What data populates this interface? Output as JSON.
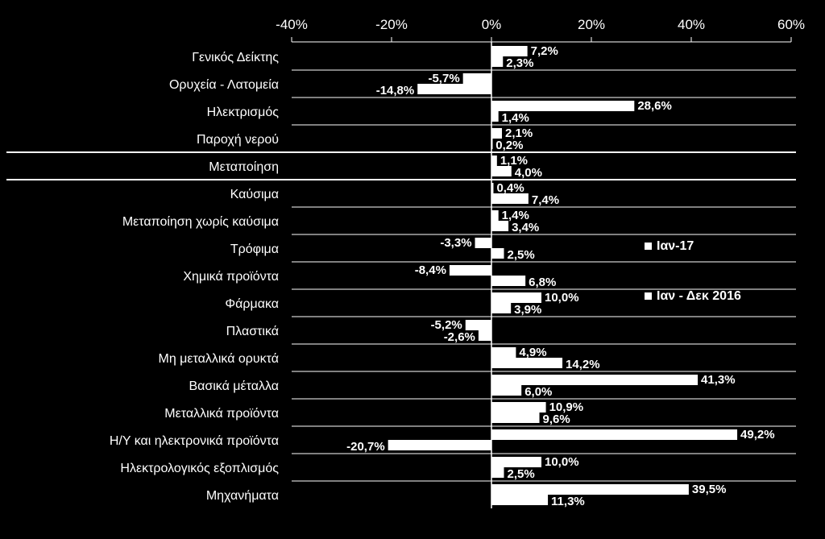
{
  "chart_data": {
    "type": "bar",
    "orientation": "horizontal",
    "xlim": [
      -40,
      60
    ],
    "x_ticks": [
      -40,
      -20,
      0,
      20,
      40,
      60
    ],
    "x_tick_labels": [
      "-40%",
      "-20%",
      "0%",
      "20%",
      "40%",
      "60%"
    ],
    "x_axis_position": "top",
    "grid": "horizontal separators between categories",
    "legend_position": "right-middle",
    "colors": {
      "background": "#000000",
      "bars": "#ffffff",
      "text": "#ffffff",
      "grid": "#ffffff"
    },
    "categories": [
      "Γενικός Δείκτης",
      "Ορυχεία - Λατομεία",
      "Ηλεκτρισμός",
      "Παροχή νερού",
      "Μεταποίηση",
      "Καύσιμα",
      "Μεταποίηση χωρίς καύσιμα",
      "Τρόφιμα",
      "Χημικά προϊόντα",
      "Φάρμακα",
      "Πλαστικά",
      "Μη μεταλλικά ορυκτά",
      "Βασικά μέταλλα",
      "Μεταλλικά προϊόντα",
      "Η/Υ και ηλεκτρονικά προϊόντα",
      "Ηλεκτρολογικός εξοπλισμός",
      "Μηχανήματα"
    ],
    "series": [
      {
        "name": "Ιαν-17",
        "values": [
          7.2,
          -5.7,
          28.6,
          2.1,
          1.1,
          0.4,
          1.4,
          -3.3,
          -8.4,
          10.0,
          -5.2,
          4.9,
          41.3,
          10.9,
          49.2,
          10.0,
          39.5
        ],
        "labels": [
          "7,2%",
          "-5,7%",
          "28,6%",
          "2,1%",
          "1,1%",
          "0,4%",
          "1,4%",
          "-3,3%",
          "-8,4%",
          "10,0%",
          "-5,2%",
          "4,9%",
          "41,3%",
          "10,9%",
          "49,2%",
          "10,0%",
          "39,5%"
        ]
      },
      {
        "name": "Ιαν - Δεκ 2016",
        "values": [
          2.3,
          -14.8,
          1.4,
          0.2,
          4.0,
          7.4,
          3.4,
          2.5,
          6.8,
          3.9,
          -2.6,
          14.2,
          6.0,
          9.6,
          -20.7,
          2.5,
          11.3
        ],
        "labels": [
          "2,3%",
          "-14,8%",
          "1,4%",
          "0,2%",
          "4,0%",
          "7,4%",
          "3,4%",
          "2,5%",
          "6,8%",
          "3,9%",
          "-2,6%",
          "14,2%",
          "6,0%",
          "9,6%",
          "-20,7%",
          "2,5%",
          "11,3%"
        ]
      }
    ]
  }
}
